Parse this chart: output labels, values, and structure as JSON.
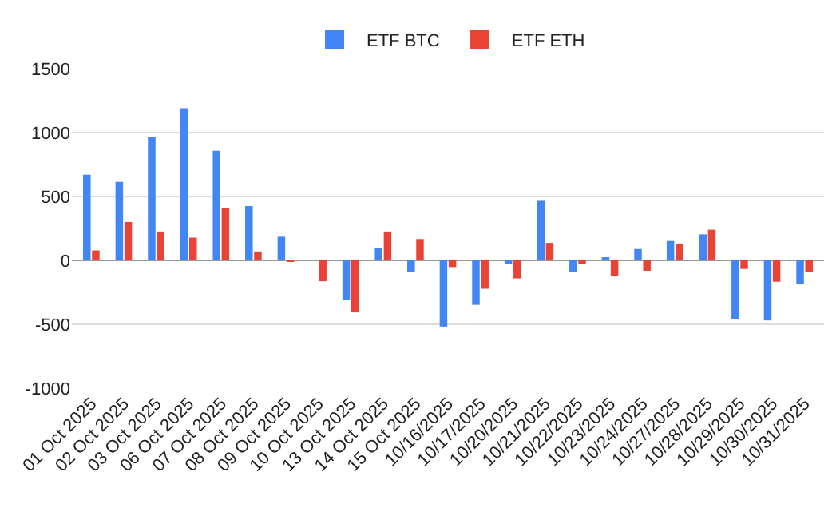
{
  "chart_data": {
    "type": "bar",
    "categories": [
      "01 Oct 2025",
      "02 Oct 2025",
      "03 Oct 2025",
      "06 Oct 2025",
      "07 Oct 2025",
      "08 Oct 2025",
      "09 Oct 2025",
      "10 Oct 2025",
      "13 Oct 2025",
      "14 Oct 2025",
      "15 Oct 2025",
      "10/16/2025",
      "10/17/2025",
      "10/20/2025",
      "10/21/2025",
      "10/22/2025",
      "10/23/2025",
      "10/24/2025",
      "10/27/2025",
      "10/28/2025",
      "10/29/2025",
      "10/30/2025",
      "10/31/2025"
    ],
    "series": [
      {
        "name": "ETF BTC",
        "color": "#4285f4",
        "values": [
          670,
          614,
          966,
          1191,
          858,
          425,
          185,
          0,
          -307,
          96,
          -89,
          -518,
          -348,
          -30,
          466,
          -89,
          18,
          89,
          152,
          204,
          -459,
          -470,
          -185
        ]
      },
      {
        "name": "ETF ETH",
        "color": "#ea4335",
        "values": [
          78,
          300,
          226,
          178,
          407,
          70,
          -5,
          -163,
          -407,
          226,
          167,
          -52,
          -222,
          -141,
          137,
          -15,
          -122,
          -81,
          130,
          240,
          -67,
          -167,
          -93
        ]
      }
    ],
    "ylim": [
      -1000,
      1500
    ],
    "yticks": [
      -1000,
      -500,
      0,
      500,
      1000,
      1500
    ],
    "grid": "y",
    "legend": "top"
  }
}
